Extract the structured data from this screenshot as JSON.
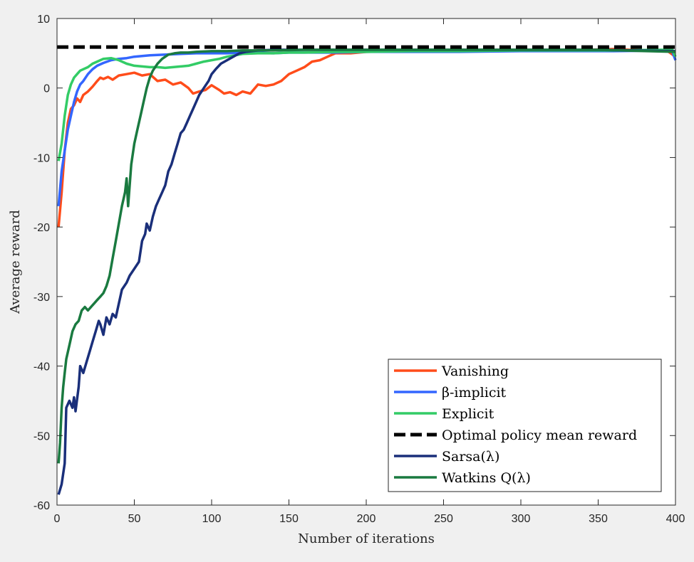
{
  "chart_data": {
    "type": "line",
    "xlabel": "Number of iterations",
    "ylabel": "Average reward",
    "xlim": [
      0,
      400
    ],
    "ylim": [
      -60,
      10
    ],
    "xticks": [
      0,
      50,
      100,
      150,
      200,
      250,
      300,
      350,
      400
    ],
    "yticks": [
      -60,
      -50,
      -40,
      -30,
      -20,
      -10,
      0,
      10
    ],
    "grid": false,
    "legend_position": "bottom-right",
    "series": [
      {
        "name": "Vanishing",
        "color": "#ff4c1a",
        "style": "solid",
        "x": [
          1,
          3,
          5,
          7,
          9,
          11,
          13,
          15,
          17,
          20,
          23,
          26,
          28,
          30,
          33,
          36,
          40,
          45,
          50,
          55,
          60,
          65,
          70,
          75,
          80,
          85,
          88,
          92,
          96,
          100,
          105,
          108,
          112,
          116,
          120,
          125,
          130,
          135,
          140,
          145,
          150,
          155,
          160,
          165,
          170,
          175,
          180,
          190,
          200,
          220,
          250,
          280,
          300,
          330,
          360,
          380,
          395,
          400
        ],
        "y": [
          -20,
          -15,
          -9,
          -5,
          -3,
          -2.5,
          -1.5,
          -2,
          -1,
          -0.5,
          0.2,
          1,
          1.5,
          1.3,
          1.6,
          1.2,
          1.8,
          2.0,
          2.2,
          1.8,
          2.0,
          1.0,
          1.2,
          0.5,
          0.8,
          0,
          -0.8,
          -0.5,
          -0.3,
          0.4,
          -0.3,
          -0.8,
          -0.6,
          -1.0,
          -0.5,
          -0.8,
          0.5,
          0.3,
          0.5,
          1.0,
          2.0,
          2.5,
          3.0,
          3.8,
          4.0,
          4.5,
          5.0,
          5.0,
          5.2,
          5.3,
          5.4,
          5.3,
          5.5,
          5.4,
          5.6,
          5.4,
          5.3,
          4.5
        ]
      },
      {
        "name": "β-implicit",
        "color": "#3366ff",
        "style": "solid",
        "x": [
          1,
          3,
          5,
          7,
          9,
          11,
          13,
          15,
          17,
          20,
          23,
          26,
          30,
          35,
          40,
          45,
          50,
          55,
          60,
          70,
          80,
          90,
          100,
          110,
          120,
          130,
          140,
          150,
          160,
          180,
          200,
          230,
          260,
          300,
          330,
          360,
          390,
          398,
          400
        ],
        "y": [
          -17,
          -12,
          -9,
          -6,
          -4,
          -2,
          -0.5,
          0.5,
          1.0,
          2.0,
          2.7,
          3.2,
          3.6,
          4.0,
          4.2,
          4.3,
          4.5,
          4.6,
          4.7,
          4.8,
          4.9,
          5.0,
          5.0,
          5.0,
          5.1,
          5.1,
          5.0,
          5.1,
          5.1,
          5.1,
          5.2,
          5.2,
          5.2,
          5.3,
          5.3,
          5.3,
          5.4,
          5.2,
          4.0
        ]
      },
      {
        "name": "Explicit",
        "color": "#33cc66",
        "style": "solid",
        "x": [
          1,
          3,
          5,
          7,
          9,
          11,
          13,
          15,
          17,
          20,
          23,
          26,
          30,
          35,
          40,
          45,
          50,
          55,
          60,
          65,
          70,
          75,
          80,
          85,
          90,
          95,
          100,
          105,
          110,
          115,
          120,
          130,
          140,
          150,
          160,
          180,
          200,
          230,
          260,
          300,
          330,
          360,
          390,
          398,
          400
        ],
        "y": [
          -10.5,
          -8,
          -4,
          -1,
          0.5,
          1.5,
          2.0,
          2.5,
          2.7,
          3.0,
          3.5,
          3.8,
          4.2,
          4.3,
          4.0,
          3.5,
          3.2,
          3.1,
          3.0,
          3.0,
          2.9,
          3.0,
          3.1,
          3.2,
          3.5,
          3.8,
          4.0,
          4.2,
          4.5,
          4.7,
          4.9,
          5.0,
          5.0,
          5.1,
          5.1,
          5.2,
          5.2,
          5.3,
          5.3,
          5.4,
          5.4,
          5.4,
          5.5,
          5.5,
          4.5
        ]
      },
      {
        "name": "Optimal policy mean reward",
        "color": "#000000",
        "style": "dashed",
        "x": [
          0,
          400
        ],
        "y": [
          5.9,
          5.9
        ]
      },
      {
        "name": "Sarsa(λ)",
        "color": "#1a2f7a",
        "style": "solid",
        "x": [
          1,
          3,
          5,
          6,
          8,
          10,
          11,
          12,
          14,
          15,
          17,
          19,
          21,
          23,
          25,
          27,
          28,
          30,
          32,
          34,
          36,
          38,
          40,
          42,
          45,
          47,
          50,
          53,
          55,
          57,
          58,
          60,
          62,
          64,
          66,
          68,
          70,
          72,
          74,
          76,
          78,
          80,
          82,
          84,
          86,
          88,
          90,
          92,
          95,
          98,
          100,
          103,
          106,
          110,
          114,
          118,
          122,
          126,
          130,
          140,
          160,
          200,
          250,
          300,
          350,
          400
        ],
        "y": [
          -58.5,
          -57,
          -54,
          -46,
          -45,
          -46,
          -44.5,
          -46.5,
          -43,
          -40,
          -41,
          -39.5,
          -38,
          -36.5,
          -35,
          -33.5,
          -34,
          -35.5,
          -33,
          -34,
          -32.5,
          -33,
          -31,
          -29,
          -28,
          -27,
          -26,
          -25,
          -22,
          -21,
          -19.5,
          -20.5,
          -18.5,
          -17,
          -16,
          -15,
          -14,
          -12,
          -11,
          -9.5,
          -8,
          -6.5,
          -6,
          -5,
          -4,
          -3,
          -2,
          -1,
          0,
          1.0,
          2.0,
          2.8,
          3.5,
          4.0,
          4.5,
          5.0,
          5.2,
          5.3,
          5.4,
          5.5,
          5.5,
          5.5,
          5.5,
          5.5,
          5.5,
          5.3
        ]
      },
      {
        "name": "Watkins Q(λ)",
        "color": "#1a7a40",
        "style": "solid",
        "x": [
          1,
          2,
          3,
          4,
          5,
          6,
          7,
          8,
          10,
          12,
          14,
          16,
          18,
          20,
          22,
          24,
          26,
          28,
          30,
          32,
          34,
          36,
          38,
          40,
          42,
          44,
          45,
          46,
          47,
          48,
          50,
          52,
          54,
          56,
          58,
          60,
          62,
          65,
          68,
          72,
          76,
          80,
          85,
          90,
          100,
          110,
          120,
          130,
          140,
          160,
          200,
          250,
          300,
          350,
          400
        ],
        "y": [
          -54,
          -51,
          -46,
          -43,
          -41,
          -39,
          -38,
          -37,
          -35,
          -34,
          -33.5,
          -32,
          -31.5,
          -32,
          -31.5,
          -31,
          -30.5,
          -30,
          -29.5,
          -28.5,
          -27,
          -24.5,
          -22,
          -19.5,
          -17,
          -15,
          -13,
          -17,
          -14,
          -11,
          -8,
          -6,
          -4,
          -2,
          0,
          1.5,
          2.5,
          3.5,
          4.2,
          4.8,
          5.0,
          5.1,
          5.1,
          5.2,
          5.3,
          5.3,
          5.4,
          5.4,
          5.4,
          5.5,
          5.5,
          5.5,
          5.5,
          5.5,
          5.2
        ]
      }
    ]
  }
}
